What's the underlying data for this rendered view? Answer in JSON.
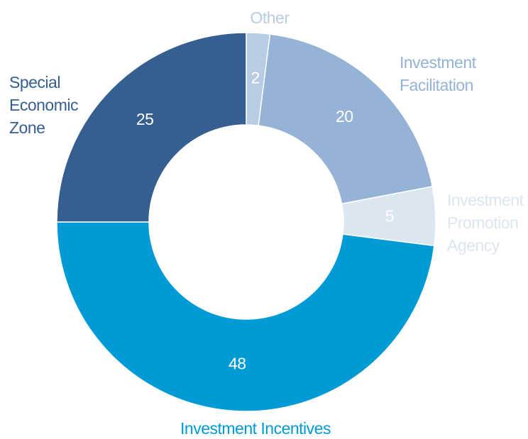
{
  "chart_data": {
    "type": "donut",
    "categories": [
      "Other",
      "Investment Facilitation",
      "Investment Promotion Agency",
      "Investment Incentives",
      "Special Economic Zone"
    ],
    "values": [
      2,
      20,
      5,
      48,
      25
    ],
    "colors": [
      "#b8cce4",
      "#95b3d7",
      "#dce6f1",
      "#009ad7",
      "#355e91"
    ]
  }
}
